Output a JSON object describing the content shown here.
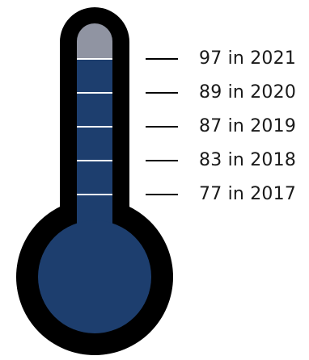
{
  "thermometer": {
    "colors": {
      "outline": "#000000",
      "fill": "#1d3e6e",
      "empty": "#9094a2",
      "tick": "#ffffff",
      "leader": "#000000"
    },
    "labels": [
      {
        "value": 97,
        "year": 2021,
        "text": "97 in 2021"
      },
      {
        "value": 89,
        "year": 2020,
        "text": "89 in 2020"
      },
      {
        "value": 87,
        "year": 2019,
        "text": "87 in 2019"
      },
      {
        "value": 83,
        "year": 2018,
        "text": "83 in 2018"
      },
      {
        "value": 77,
        "year": 2017,
        "text": "77 in 2017"
      }
    ]
  }
}
